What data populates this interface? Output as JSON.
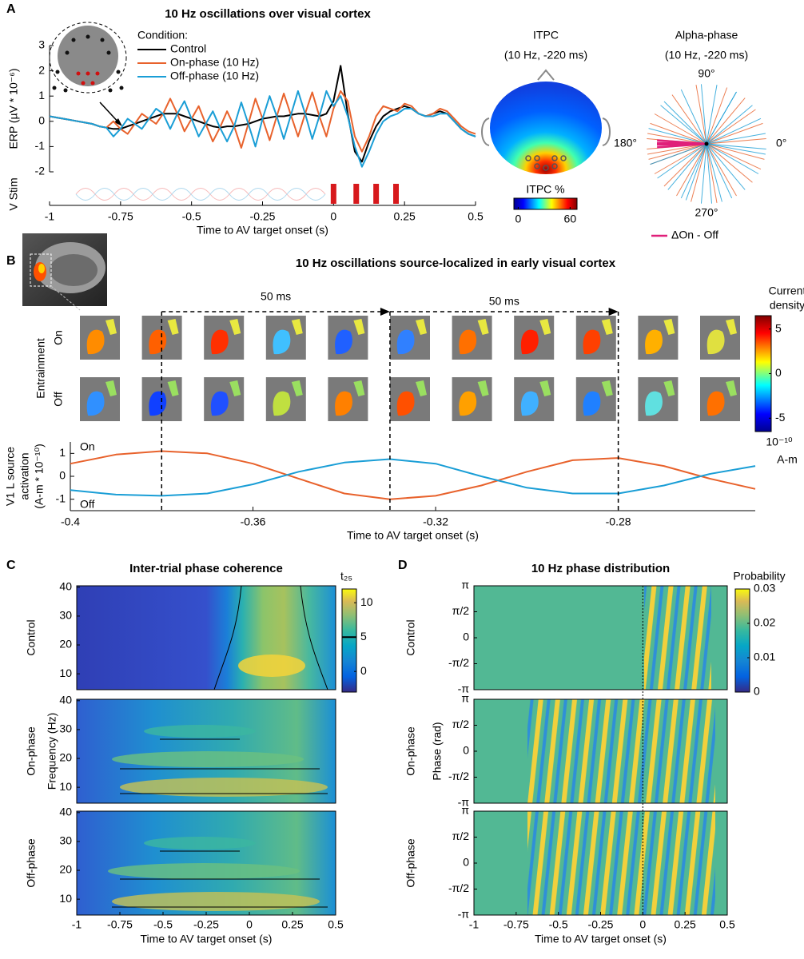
{
  "chart_data": [
    {
      "type": "line",
      "panel": "A",
      "title": "10 Hz oscillations over visual cortex",
      "xlabel": "Time to AV target onset (s)",
      "ylabel": "ERP (µV * 10⁻⁶)",
      "legend_title": "Condition:",
      "x": [
        -1,
        -0.975,
        -0.95,
        -0.925,
        -0.9,
        -0.875,
        -0.85,
        -0.825,
        -0.8,
        -0.775,
        -0.75,
        -0.725,
        -0.7,
        -0.675,
        -0.65,
        -0.625,
        -0.6,
        -0.575,
        -0.55,
        -0.525,
        -0.5,
        -0.475,
        -0.45,
        -0.425,
        -0.4,
        -0.375,
        -0.35,
        -0.325,
        -0.3,
        -0.275,
        -0.25,
        -0.225,
        -0.2,
        -0.175,
        -0.15,
        -0.125,
        -0.1,
        -0.075,
        -0.05,
        -0.025,
        0,
        0.025,
        0.05,
        0.075,
        0.1,
        0.125,
        0.15,
        0.175,
        0.2,
        0.225,
        0.25,
        0.275,
        0.3,
        0.325,
        0.35,
        0.375,
        0.4,
        0.425,
        0.45,
        0.475,
        0.5
      ],
      "series": [
        {
          "name": "Control",
          "color": "#000000",
          "values": [
            0.2,
            0.15,
            0.1,
            0.05,
            0,
            -0.05,
            -0.1,
            -0.2,
            -0.25,
            -0.3,
            -0.3,
            -0.2,
            -0.1,
            0,
            0.1,
            0.2,
            0.3,
            0.3,
            0.3,
            0.2,
            0.1,
            0,
            -0.1,
            -0.2,
            -0.25,
            -0.2,
            -0.2,
            -0.15,
            -0.1,
            0,
            0.1,
            0.15,
            0.2,
            0.2,
            0.25,
            0.3,
            0.3,
            0.25,
            0.2,
            0.3,
            0.8,
            2.2,
            0.3,
            -1.2,
            -1.6,
            -0.8,
            -0.2,
            0.2,
            0.4,
            0.5,
            0.6,
            0.5,
            0.3,
            0.2,
            0.3,
            0.4,
            0.3,
            0,
            -0.3,
            -0.5,
            -0.6
          ]
        },
        {
          "name": "On-phase (10 Hz)",
          "color": "#e8622c",
          "values": [
            0.2,
            0.15,
            0.1,
            0.05,
            0,
            -0.05,
            -0.1,
            -0.2,
            -0.25,
            0,
            -0.3,
            -0.5,
            -0.1,
            0.3,
            0.1,
            -0.1,
            0.3,
            0.9,
            0.3,
            -0.4,
            0.1,
            0.6,
            -0.1,
            -0.8,
            -0.25,
            0.4,
            -0.2,
            -1.05,
            -0.1,
            0.9,
            0.1,
            -0.75,
            0.2,
            1.1,
            0.25,
            -0.6,
            0.3,
            1.15,
            0.2,
            -0.6,
            0.5,
            1.2,
            0.8,
            -0.6,
            -1.2,
            -0.6,
            0.2,
            0.6,
            0.5,
            0.4,
            0.7,
            0.6,
            0.3,
            0.2,
            0.3,
            0.5,
            0.4,
            0.1,
            -0.2,
            -0.4,
            -0.5
          ]
        },
        {
          "name": "Off-phase (10 Hz)",
          "color": "#1a9ed6",
          "values": [
            0.2,
            0.15,
            0.1,
            0.05,
            0,
            -0.05,
            -0.1,
            -0.2,
            -0.25,
            -0.6,
            -0.3,
            0.1,
            -0.1,
            -0.3,
            0.1,
            0.5,
            0.3,
            -0.3,
            0.3,
            0.8,
            0.1,
            -0.6,
            -0.1,
            0.4,
            -0.25,
            -0.8,
            -0.2,
            0.75,
            -0.1,
            -1.0,
            0.1,
            1.0,
            0.2,
            -0.7,
            0.25,
            1.2,
            0.3,
            -0.7,
            0.2,
            1.2,
            0.6,
            1.0,
            0.2,
            -1.0,
            -1.8,
            -1.2,
            -0.5,
            0,
            0.2,
            0.3,
            0.5,
            0.5,
            0.3,
            0.2,
            0.2,
            0.3,
            0.3,
            0,
            -0.3,
            -0.5,
            -0.6
          ]
        }
      ],
      "xlim": [
        -1,
        0.5
      ],
      "ylim": [
        -2,
        3
      ],
      "xticks": [
        -1,
        -0.75,
        -0.5,
        -0.25,
        0,
        0.25,
        0.5
      ],
      "yticks": [
        -2,
        -1,
        0,
        1,
        2,
        3
      ],
      "stim_label": "V Stim",
      "stim_times": [
        0,
        0.08,
        0.15,
        0.22
      ],
      "stim_color": "#d7191c"
    },
    {
      "type": "topomap",
      "title": "ITPC",
      "subtitle": "(10 Hz, -220 ms)",
      "colorbar_label": "ITPC %",
      "clim": [
        -5,
        68
      ],
      "cticks": [
        0,
        60
      ]
    },
    {
      "type": "polar",
      "title": "Alpha-phase",
      "subtitle": "(10 Hz, -220 ms)",
      "angle_labels": [
        {
          "value": 90,
          "label": "90°"
        },
        {
          "value": 180,
          "label": "180°"
        },
        {
          "value": 0,
          "label": "0°"
        },
        {
          "value": 270,
          "label": "270°"
        }
      ],
      "series": [
        {
          "color": "#e8622c",
          "values": [
            5,
            20,
            35,
            50,
            70,
            100,
            125,
            150,
            160,
            170,
            185,
            195,
            210,
            225,
            240,
            255,
            280,
            300,
            320,
            335,
            345,
            200,
            190,
            175
          ]
        },
        {
          "color": "#1a9ed6",
          "values": [
            10,
            40,
            60,
            80,
            95,
            115,
            135,
            165,
            200,
            215,
            230,
            250,
            265,
            285,
            295,
            310,
            330,
            350,
            355,
            140,
            60,
            25,
            245,
            275
          ]
        },
        {
          "name": "ΔOn - Off",
          "color": "#e0207a",
          "values": [
            176,
            179,
            181,
            184
          ]
        }
      ]
    },
    {
      "type": "image-grid",
      "panel": "B",
      "title": "10 Hz oscillations source-localized in early visual cortex",
      "row_group_label": "Entrainment",
      "rows": [
        "On",
        "Off"
      ],
      "row_colors": [
        "#e8622c",
        "#1a9ed6"
      ],
      "interval_labels": [
        "50 ms",
        "50 ms"
      ],
      "colorbar_title": [
        "Current",
        "density"
      ],
      "colorbar_unit": [
        "10⁻¹⁰",
        "A-m"
      ],
      "clim": [
        -6.5,
        6.5
      ],
      "cticks": [
        5,
        0,
        -5
      ]
    },
    {
      "type": "line",
      "xlabel": "Time to AV target onset (s)",
      "ylabel": [
        "V1 L source",
        "activation",
        "(A-m * 10⁻¹⁰)"
      ],
      "x": [
        -0.4,
        -0.39,
        -0.38,
        -0.37,
        -0.36,
        -0.35,
        -0.34,
        -0.33,
        -0.32,
        -0.31,
        -0.3,
        -0.29,
        -0.28,
        -0.27,
        -0.26,
        -0.25
      ],
      "series": [
        {
          "name": "On",
          "color": "#e8622c",
          "values": [
            0.55,
            0.95,
            1.1,
            1.0,
            0.55,
            -0.1,
            -0.75,
            -1.0,
            -0.85,
            -0.4,
            0.2,
            0.7,
            0.8,
            0.45,
            -0.1,
            -0.55
          ]
        },
        {
          "name": "Off",
          "color": "#1a9ed6",
          "values": [
            -0.6,
            -0.8,
            -0.85,
            -0.75,
            -0.35,
            0.2,
            0.6,
            0.75,
            0.55,
            0,
            -0.5,
            -0.75,
            -0.75,
            -0.4,
            0.1,
            0.45
          ]
        }
      ],
      "xlim": [
        -0.4,
        -0.25
      ],
      "ylim": [
        -1.5,
        1.5
      ],
      "xticks": [
        -0.4,
        -0.36,
        -0.32,
        -0.28
      ],
      "yticks": [
        -1,
        0,
        1
      ],
      "vlines": [
        -0.38,
        -0.33,
        -0.28
      ]
    },
    {
      "type": "heatmap",
      "panel": "C",
      "title": "Inter-trial phase coherence",
      "rows": [
        "Control",
        "On-phase",
        "Off-phase"
      ],
      "row_colors": [
        "#000000",
        "#e8622c",
        "#1a9ed6"
      ],
      "xlabel": "Time to AV target onset (s)",
      "ylabel": "Frequency (Hz)",
      "xlim": [
        -1,
        0.5
      ],
      "ylim": [
        4.5,
        40.5
      ],
      "xticks": [
        -1,
        -0.75,
        -0.5,
        -0.25,
        0,
        0.25,
        0.5
      ],
      "yticks": [
        10,
        20,
        30,
        40
      ],
      "colorbar_label": "t₂₅",
      "clim": [
        -3,
        12
      ],
      "cticks": [
        0,
        5,
        10
      ],
      "threshold": 5
    },
    {
      "type": "heatmap",
      "panel": "D",
      "title": "10 Hz phase distribution",
      "rows": [
        "Control",
        "On-phase",
        "Off-phase"
      ],
      "row_colors": [
        "#000000",
        "#e8622c",
        "#1a9ed6"
      ],
      "xlabel": "Time to AV target onset (s)",
      "ylabel": "Phase (rad)",
      "xlim": [
        -1,
        0.5
      ],
      "ylim": [
        -3.1416,
        3.1416
      ],
      "xticks": [
        -1,
        -0.75,
        -0.5,
        -0.25,
        0,
        0.25,
        0.5
      ],
      "yticks": [
        {
          "value": -3.1416,
          "label": "-π"
        },
        {
          "value": -1.5708,
          "label": "-π/2"
        },
        0,
        {
          "value": 1.5708,
          "label": "π/2"
        },
        {
          "value": 3.1416,
          "label": "π"
        }
      ],
      "colorbar_label": "Probability",
      "clim": [
        0,
        0.03
      ],
      "cticks": [
        0,
        0.01,
        0.02,
        0.03
      ],
      "onset_line": 0
    }
  ]
}
